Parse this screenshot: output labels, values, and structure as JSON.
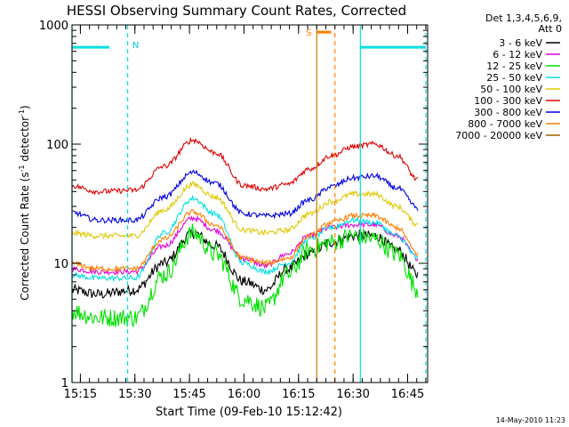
{
  "chart_data": {
    "type": "line",
    "title": "HESSI Observing Summary Count Rates, Corrected",
    "xlabel": "Start Time (09-Feb-10 15:12:42)",
    "ylabel": "Corrected Count Rate (s⁻¹ detector⁻¹)",
    "ylabel_main": "Corrected Count Rate (s",
    "ylabel_mid": " detector",
    "ylabel_end": ")",
    "ylabel_sup": "-1",
    "yscale": "log",
    "ylim": [
      1,
      1000
    ],
    "y_ticks": [
      {
        "value": 1,
        "label": "1"
      },
      {
        "value": 10,
        "label": "10"
      },
      {
        "value": 100,
        "label": "100"
      },
      {
        "value": 1000,
        "label": "1000"
      }
    ],
    "xlim": [
      "15:12:42",
      "16:50:30"
    ],
    "x_ticks": [
      "15:15",
      "15:30",
      "15:45",
      "16:00",
      "16:15",
      "16:30",
      "16:45"
    ],
    "legend_header": [
      "Det 1,3,4,5,6,9,",
      "Att 0"
    ],
    "legend_placement": "right of plot",
    "footer_date": "14-May-2010 11:23",
    "series": [
      {
        "name": "3 - 6 keV",
        "color": "#000000",
        "x": [
          "15:12",
          "15:20",
          "15:30",
          "15:38",
          "15:46",
          "15:52",
          "16:00",
          "16:06",
          "16:12",
          "16:18",
          "16:24",
          "16:30",
          "16:36",
          "16:42",
          "16:48"
        ],
        "y": [
          6,
          5.5,
          6,
          10,
          18,
          14,
          7,
          6,
          9,
          12,
          15,
          17,
          17,
          13,
          8
        ]
      },
      {
        "name": "6 - 12 keV",
        "color": "#e000e0",
        "x": [
          "15:12",
          "15:20",
          "15:30",
          "15:38",
          "15:46",
          "15:52",
          "16:00",
          "16:06",
          "16:12",
          "16:18",
          "16:24",
          "16:30",
          "16:36",
          "16:42",
          "16:48"
        ],
        "y": [
          9,
          8.5,
          8.5,
          14,
          24,
          19,
          11,
          9.5,
          12,
          17,
          20,
          21,
          21,
          17,
          11
        ]
      },
      {
        "name": "12 - 25 keV",
        "color": "#00e000",
        "x": [
          "15:12",
          "15:20",
          "15:30",
          "15:38",
          "15:46",
          "15:52",
          "16:00",
          "16:06",
          "16:12",
          "16:18",
          "16:24",
          "16:30",
          "16:36",
          "16:42",
          "16:48"
        ],
        "y": [
          4,
          3.5,
          3.5,
          8,
          18,
          12,
          5,
          4.2,
          8,
          13,
          15,
          17,
          16,
          12,
          6
        ]
      },
      {
        "name": "25 - 50 keV",
        "color": "#00e0e0",
        "x": [
          "15:12",
          "15:20",
          "15:30",
          "15:38",
          "15:46",
          "15:52",
          "16:00",
          "16:06",
          "16:12",
          "16:18",
          "16:24",
          "16:30",
          "16:36",
          "16:42",
          "16:48"
        ],
        "y": [
          8,
          7.5,
          7.5,
          18,
          35,
          26,
          10,
          8.5,
          10,
          16,
          20,
          23,
          22,
          17,
          11
        ]
      },
      {
        "name": "50 - 100 keV",
        "color": "#e0c800",
        "x": [
          "15:12",
          "15:20",
          "15:30",
          "15:38",
          "15:46",
          "15:52",
          "16:00",
          "16:06",
          "16:12",
          "16:18",
          "16:24",
          "16:30",
          "16:36",
          "16:42",
          "16:48"
        ],
        "y": [
          18,
          17,
          17,
          28,
          46,
          36,
          19,
          18,
          19,
          26,
          33,
          38,
          38,
          30,
          21
        ]
      },
      {
        "name": "100 - 300 keV",
        "color": "#e00000",
        "x": [
          "15:12",
          "15:20",
          "15:30",
          "15:38",
          "15:46",
          "15:52",
          "16:00",
          "16:06",
          "16:12",
          "16:18",
          "16:24",
          "16:30",
          "16:36",
          "16:42",
          "16:48"
        ],
        "y": [
          45,
          40,
          41,
          65,
          108,
          85,
          45,
          42,
          46,
          62,
          80,
          95,
          100,
          80,
          50
        ]
      },
      {
        "name": "300 - 800 keV",
        "color": "#0000e0",
        "x": [
          "15:12",
          "15:20",
          "15:30",
          "15:38",
          "15:46",
          "15:52",
          "16:00",
          "16:06",
          "16:12",
          "16:18",
          "16:24",
          "16:30",
          "16:36",
          "16:42",
          "16:48"
        ],
        "y": [
          27,
          23,
          23,
          36,
          58,
          47,
          26,
          25,
          26,
          34,
          44,
          52,
          54,
          43,
          29
        ]
      },
      {
        "name": "800 - 7000 keV",
        "color": "#ff8000",
        "x": [
          "15:12",
          "15:20",
          "15:30",
          "15:38",
          "15:46",
          "15:52",
          "16:00",
          "16:06",
          "16:12",
          "16:18",
          "16:24",
          "16:30",
          "16:36",
          "16:42",
          "16:48"
        ],
        "y": [
          10,
          9,
          9,
          16,
          27,
          21,
          11,
          10,
          11,
          17,
          22,
          25,
          25,
          20,
          12
        ]
      },
      {
        "name": "7000 - 20000 keV",
        "color": "#a06000",
        "x": [],
        "y": []
      }
    ],
    "annotations": [
      {
        "text": "N",
        "color": "#00c8e0"
      },
      {
        "text": "S",
        "color": "#ff8000"
      }
    ],
    "flag_bars": [
      {
        "label": "N",
        "color": "#00e0e0",
        "from": "15:12:42",
        "to": "15:23",
        "y": 650
      },
      {
        "label": "N",
        "color": "#00e0e0",
        "from": "16:32",
        "to": "16:50",
        "y": 650
      },
      {
        "label": "S",
        "color": "#ff8000",
        "from": "16:20",
        "to": "16:24",
        "y": 870
      }
    ],
    "vertical_markers": [
      {
        "time": "15:12:42",
        "color": "#00e0e0",
        "style": "solid"
      },
      {
        "time": "15:28",
        "color": "#00e0e0",
        "style": "dashed"
      },
      {
        "time": "16:20",
        "color": "#c87800",
        "style": "solid"
      },
      {
        "time": "16:25",
        "color": "#ff8000",
        "style": "dashed"
      },
      {
        "time": "16:32",
        "color": "#00e0e0",
        "style": "solid"
      },
      {
        "time": "16:50",
        "color": "#00e0e0",
        "style": "dashed"
      }
    ]
  }
}
